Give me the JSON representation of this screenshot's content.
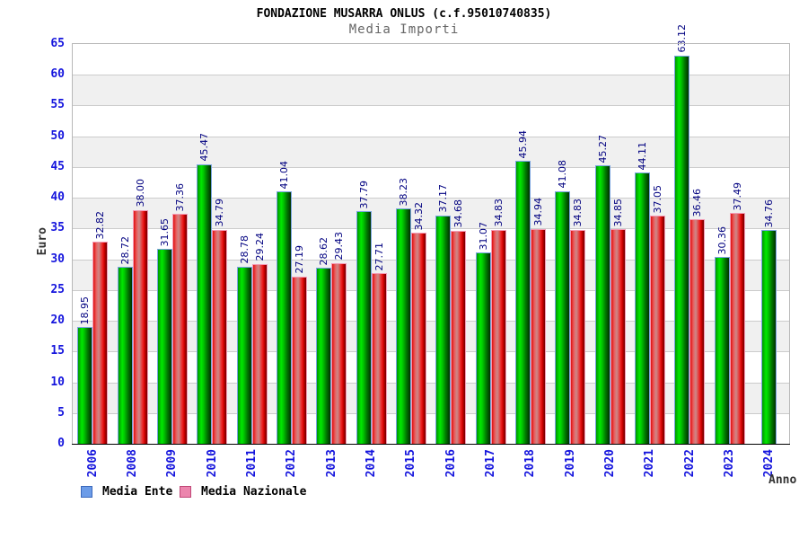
{
  "header": {
    "title": "FONDAZIONE MUSARRA ONLUS (c.f.95010740835)",
    "subtitle": "Media Importi"
  },
  "chart_data": {
    "type": "bar",
    "title": "FONDAZIONE MUSARRA ONLUS (c.f.95010740835)",
    "subtitle": "Media Importi",
    "xlabel": "Anno",
    "ylabel": "Euro",
    "ylim": [
      0,
      65
    ],
    "ytick_step": 5,
    "grid": true,
    "banded_background": true,
    "legend_position": "bottom-left",
    "categories": [
      "2006",
      "2008",
      "2009",
      "2010",
      "2011",
      "2012",
      "2013",
      "2014",
      "2015",
      "2016",
      "2017",
      "2018",
      "2019",
      "2020",
      "2021",
      "2022",
      "2023",
      "2024"
    ],
    "series": [
      {
        "name": "Media Ente",
        "bar_fill": "#00cc00",
        "bar_border": "#7aa4e0",
        "legend_fill": "#6c9ce8",
        "legend_border": "#3c6abc",
        "values": [
          18.95,
          28.72,
          31.65,
          45.47,
          28.78,
          41.04,
          28.62,
          37.79,
          38.23,
          37.17,
          31.07,
          45.94,
          41.08,
          45.27,
          44.11,
          63.12,
          30.36,
          34.76
        ]
      },
      {
        "name": "Media Nazionale",
        "bar_fill": "#ee2222",
        "bar_border": "#f49ab4",
        "legend_fill": "#ec85ad",
        "legend_border": "#c04878",
        "values": [
          32.82,
          38.0,
          37.36,
          34.79,
          29.24,
          27.19,
          29.43,
          27.71,
          34.32,
          34.68,
          34.83,
          34.94,
          34.83,
          34.85,
          37.05,
          36.46,
          37.49,
          null
        ]
      }
    ],
    "colors": {
      "tick_label": "#1515dd",
      "value_label": "#000080",
      "band_gray": "#f0f0f0",
      "gridline": "#cccccc",
      "axis_line": "#000000",
      "subtitle_gray": "#666666"
    }
  }
}
